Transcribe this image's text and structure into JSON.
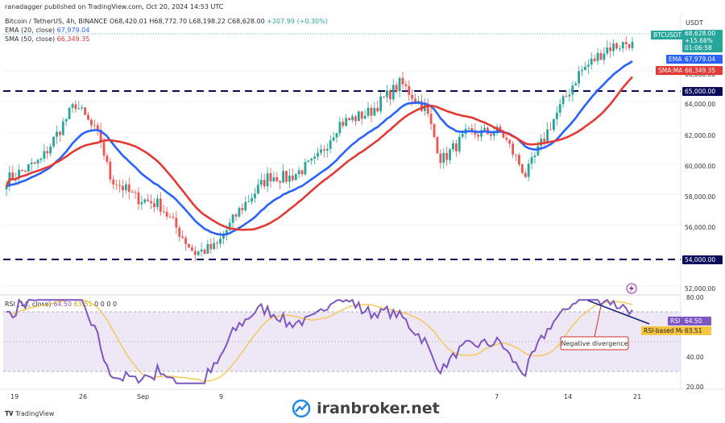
{
  "publish": {
    "text": "ranadagger published on TradingView.com, Oct 20, 2024 14:53 UTC"
  },
  "symbol_line": {
    "symbol": "Bitcoin / TetherUS, 4h, BINANCE",
    "o_label": "O",
    "o": "68,420.01",
    "h_label": "H",
    "h": "68,772.70",
    "l_label": "L",
    "l": "68,198.22",
    "c_label": "C",
    "c": "68,628.00",
    "change": "+207.99 (+0.30%)"
  },
  "ema_line": {
    "label": "EMA (20, close)",
    "value": "67,979.04",
    "color": "#2962ff"
  },
  "sma_line": {
    "label": "SMA (50, close)",
    "value": "66,349.35",
    "color": "#e53935"
  },
  "rsi_header": {
    "label": "RSI (14, close)",
    "v1": "64.50",
    "v2": "63.51",
    "zeros": "0 0 0 0"
  },
  "price_scale": {
    "currency": "USDT",
    "ticks": [
      "66,000.00",
      "64,000.00",
      "62,000.00",
      "60,000.00",
      "58,000.00",
      "56,000.00",
      "52,000.00"
    ]
  },
  "price_tags": {
    "symbol_tag": "BTCUSDT",
    "last_price": "68,628.00",
    "pct": "+15.66%",
    "countdown": "01:06:58",
    "ema_label": "EMA",
    "ema_value": "67,979.04",
    "sma_label": "SMA:MA",
    "sma_value": "66,349.35",
    "level_high": "65,000.00",
    "level_low": "54,000.00"
  },
  "rsi_scale": {
    "ticks": [
      "80.00",
      "40.00",
      "20.00"
    ],
    "rsi_label": "RSI",
    "rsi_value": "64.50",
    "ma_label": "RSI-based MA",
    "ma_value": "63.51"
  },
  "annotations": {
    "negative_divergence": "Negative divergence"
  },
  "x_axis": {
    "labels": [
      "19",
      "26",
      "Sep",
      "9",
      "7",
      "14",
      "21"
    ]
  },
  "footer": {
    "tv_logo": "TradingView",
    "brand": "iranbroker.net"
  },
  "colors": {
    "up": "#26a69a",
    "down": "#ef5350",
    "ema": "#2962ff",
    "sma": "#e53935",
    "rsi": "#7e57c2",
    "rsi_ma": "#f5c542",
    "band": "#ede7f6"
  },
  "chart_data": [
    {
      "type": "candlestick",
      "title": "Bitcoin / TetherUS, 4h, BINANCE",
      "ylim": [
        51500,
        69500
      ],
      "levels": [
        65000,
        54000
      ],
      "approx_close_path": [
        {
          "x": "Aug 17",
          "y": 59200
        },
        {
          "x": "Aug 21",
          "y": 60500
        },
        {
          "x": "Aug 24",
          "y": 64400
        },
        {
          "x": "Aug 27",
          "y": 62000
        },
        {
          "x": "Aug 28",
          "y": 59400
        },
        {
          "x": "Sep 1",
          "y": 58000
        },
        {
          "x": "Sep 4",
          "y": 57500
        },
        {
          "x": "Sep 6",
          "y": 54200
        },
        {
          "x": "Sep 8",
          "y": 54600
        },
        {
          "x": "Sep 10",
          "y": 57000
        },
        {
          "x": "Sep 13",
          "y": 59500
        },
        {
          "x": "Sep 15",
          "y": 59300
        },
        {
          "x": "Sep 18",
          "y": 60500
        },
        {
          "x": "Sep 20",
          "y": 63000
        },
        {
          "x": "Sep 24",
          "y": 63800
        },
        {
          "x": "Sep 27",
          "y": 65800
        },
        {
          "x": "Sep 30",
          "y": 64000
        },
        {
          "x": "Oct 2",
          "y": 60500
        },
        {
          "x": "Oct 5",
          "y": 62300
        },
        {
          "x": "Oct 8",
          "y": 62500
        },
        {
          "x": "Oct 10",
          "y": 59500
        },
        {
          "x": "Oct 13",
          "y": 63000
        },
        {
          "x": "Oct 15",
          "y": 66500
        },
        {
          "x": "Oct 17",
          "y": 68200
        },
        {
          "x": "Oct 20",
          "y": 68628
        }
      ],
      "series": [
        {
          "name": "EMA (20, close)",
          "last": 67979.04
        },
        {
          "name": "SMA (50, close)",
          "last": 66349.35
        }
      ]
    },
    {
      "type": "line",
      "title": "RSI (14, close)",
      "ylim": [
        20,
        80
      ],
      "band": [
        30,
        70
      ],
      "series": [
        {
          "name": "RSI",
          "last": 64.5
        },
        {
          "name": "RSI-based MA",
          "last": 63.51
        }
      ],
      "annotation": "Negative divergence"
    }
  ]
}
